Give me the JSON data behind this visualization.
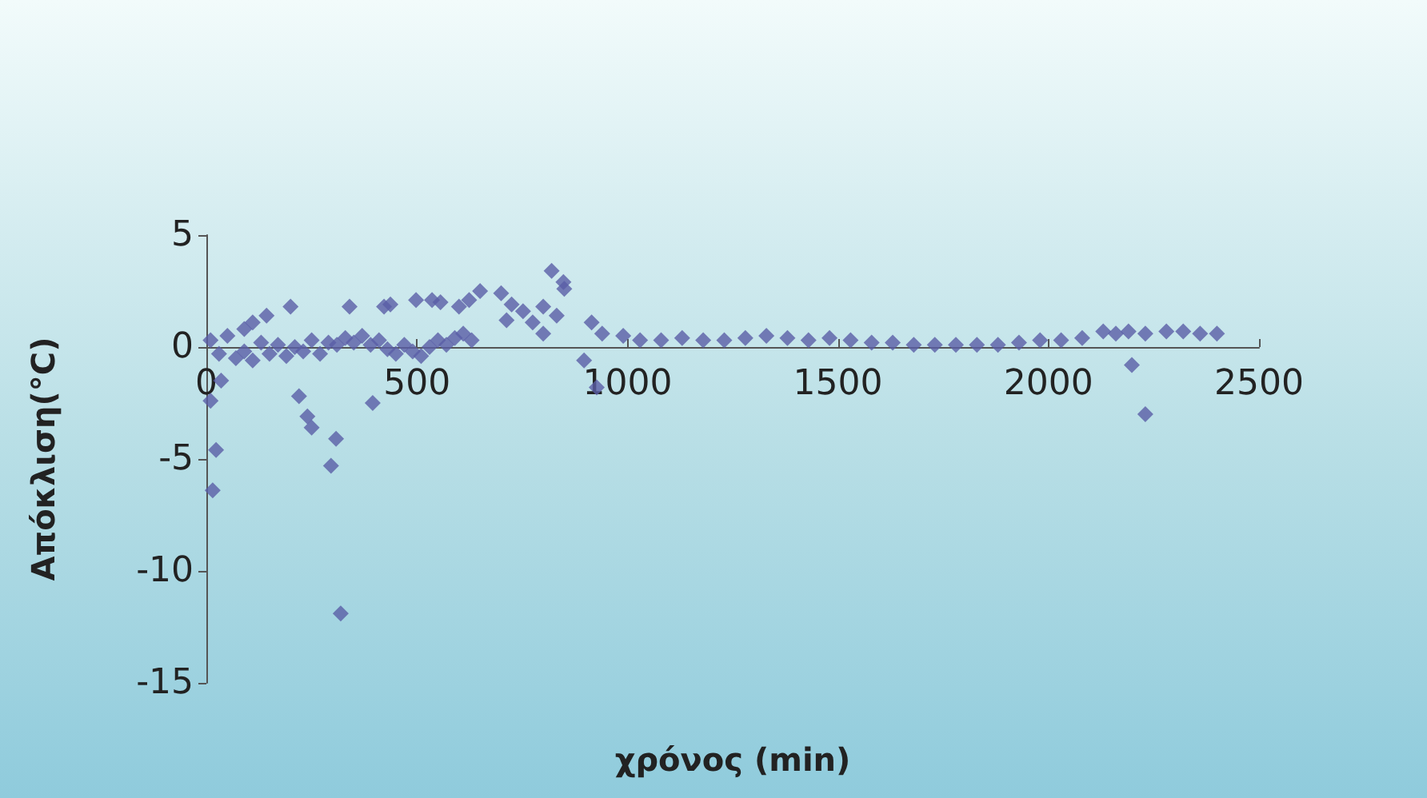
{
  "chart_data": {
    "type": "scatter",
    "xlabel": "χρόνος (min)",
    "ylabel": "Απόκλιση(°C)",
    "marker": "diamond",
    "grid": false,
    "xlim": [
      0,
      2500
    ],
    "xticks": [
      0,
      500,
      1000,
      1500,
      2000,
      2500
    ],
    "ylim": [
      -15,
      5
    ],
    "yticks": [
      -15,
      -10,
      -5,
      0,
      5
    ],
    "series": [
      {
        "color": "#5a5ea6",
        "x": [
          15,
          23,
          10,
          35,
          220,
          240,
          250,
          296,
          308,
          319,
          395,
          897,
          927,
          2198,
          2230,
          10,
          30,
          50,
          70,
          90,
          110,
          130,
          150,
          170,
          190,
          210,
          230,
          250,
          270,
          290,
          310,
          330,
          350,
          370,
          390,
          410,
          430,
          450,
          470,
          490,
          510,
          530,
          550,
          570,
          590,
          610,
          630,
          90,
          110,
          143,
          200,
          340,
          422,
          437,
          498,
          536,
          556,
          600,
          624,
          650,
          700,
          713,
          725,
          752,
          775,
          800,
          800,
          820,
          832,
          848,
          850,
          915,
          940,
          990,
          1030,
          1080,
          1130,
          1180,
          1230,
          1280,
          1330,
          1380,
          1430,
          1480,
          1530,
          1580,
          1630,
          1680,
          1730,
          1780,
          1830,
          1880,
          1930,
          1980,
          2030,
          2080,
          2130,
          2160,
          2190,
          2230,
          2280,
          2320,
          2360,
          2400
        ],
        "values": [
          -6.4,
          -4.6,
          -2.4,
          -1.5,
          -2.2,
          -3.1,
          -3.6,
          -5.3,
          -4.1,
          -11.9,
          -2.5,
          -0.6,
          -1.8,
          -0.8,
          -3.0,
          0.3,
          -0.3,
          0.5,
          -0.5,
          -0.2,
          -0.6,
          0.2,
          -0.3,
          0.1,
          -0.4,
          0,
          -0.2,
          0.3,
          -0.3,
          0.2,
          0.1,
          0.4,
          0.2,
          0.5,
          0.1,
          0.3,
          -0.1,
          -0.3,
          0.1,
          -0.2,
          -0.4,
          0,
          0.3,
          0.1,
          0.4,
          0.6,
          0.3,
          0.8,
          1.1,
          1.4,
          1.8,
          1.8,
          1.8,
          1.9,
          2.1,
          2.1,
          2.0,
          1.8,
          2.1,
          2.5,
          2.4,
          1.2,
          1.9,
          1.6,
          1.1,
          1.8,
          0.6,
          3.4,
          1.4,
          2.9,
          2.6,
          1.1,
          0.6,
          0.5,
          0.3,
          0.3,
          0.4,
          0.3,
          0.3,
          0.4,
          0.5,
          0.4,
          0.3,
          0.4,
          0.3,
          0.2,
          0.2,
          0.1,
          0.1,
          0.1,
          0.1,
          0.1,
          0.2,
          0.3,
          0.3,
          0.4,
          0.7,
          0.6,
          0.7,
          0.6,
          0.7,
          0.7,
          0.6,
          0.6
        ]
      }
    ]
  }
}
